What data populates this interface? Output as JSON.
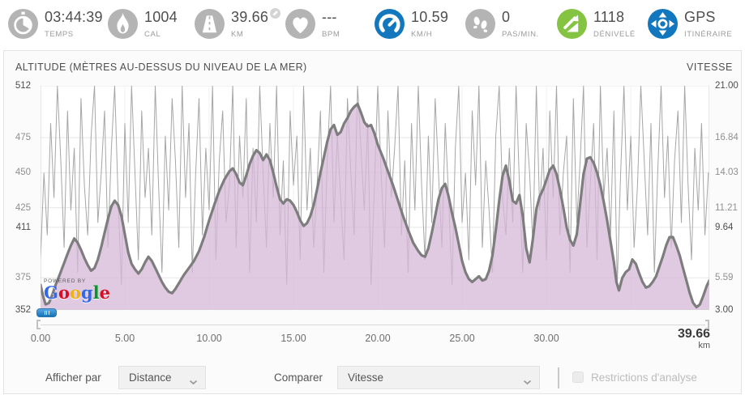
{
  "header": {
    "stats": [
      {
        "value": "03:44:39",
        "label": "TEMPS",
        "icon": "stopwatch-icon"
      },
      {
        "value": "1004",
        "label": "CAL",
        "icon": "flame-icon"
      },
      {
        "value": "39.66",
        "label": "KM",
        "icon": "distance-icon"
      },
      {
        "value": "---",
        "label": "BPM",
        "icon": "heart-icon"
      },
      {
        "value": "10.59",
        "label": "KM/H",
        "icon": "speedometer-icon"
      },
      {
        "value": "0",
        "label": "PAS/MIN.",
        "icon": "footsteps-icon"
      },
      {
        "value": "1118",
        "label": "DÉNIVELÉ",
        "icon": "ascent-icon"
      },
      {
        "value": "GPS",
        "label": "ITINÉRAIRE",
        "icon": "gps-route-icon"
      }
    ]
  },
  "chart": {
    "title_left": "ALTITUDE (MÈTRES AU-DESSUS DU NIVEAU DE LA MER)",
    "title_right": "VITESSE",
    "watermark_small": "POWERED BY",
    "watermark_letters": [
      "G",
      "o",
      "o",
      "g",
      "l",
      "e"
    ],
    "x_end_label": "39.66",
    "x_end_unit": "km"
  },
  "controls": {
    "show_by_label": "Afficher par",
    "show_by_value": "Distance",
    "compare_label": "Comparer",
    "compare_value": "Vitesse",
    "restrictions_label": "Restrictions d'analyse"
  },
  "colors": {
    "icon_gray": "#b4b4b4",
    "accent_blue": "#1377bd",
    "accent_green": "#85c342",
    "area_fill": "#d5b8d8",
    "area_stroke": "#7d7d7d",
    "speed_line": "#a6a6a6"
  },
  "chart_data": {
    "type": "area",
    "title": "ALTITUDE (MÈTRES AU-DESSUS DU NIVEAU DE LA MER)",
    "legend_position": "none",
    "grid": true,
    "left_axis": {
      "name": "altitude_m",
      "min": 352,
      "max": 512,
      "ticks": [
        {
          "label": "512",
          "v": 512,
          "strong": true
        },
        {
          "label": "475",
          "v": 475,
          "strong": false
        },
        {
          "label": "450",
          "v": 450,
          "strong": false
        },
        {
          "label": "425",
          "v": 425,
          "strong": false
        },
        {
          "label": "411",
          "v": 411,
          "strong": true
        },
        {
          "label": "375",
          "v": 375,
          "strong": false
        },
        {
          "label": "352",
          "v": 352,
          "strong": true
        }
      ]
    },
    "right_axis": {
      "name": "vitesse_kmh",
      "min": 3,
      "max": 21,
      "ticks": [
        {
          "label": "21.00",
          "v": 21.0,
          "strong": true
        },
        {
          "label": "16.84",
          "v": 16.84,
          "strong": false
        },
        {
          "label": "14.03",
          "v": 14.03,
          "strong": false
        },
        {
          "label": "11.21",
          "v": 11.21,
          "strong": false
        },
        {
          "label": "9.64",
          "v": 9.64,
          "strong": true
        },
        {
          "label": "5.59",
          "v": 5.59,
          "strong": false
        },
        {
          "label": "3.00",
          "v": 3.0,
          "strong": true
        }
      ]
    },
    "x_axis": {
      "name": "distance_km",
      "min": 0,
      "max": 39.66,
      "ticks": [
        {
          "label": "0.00",
          "km": 0
        },
        {
          "label": "5.00",
          "km": 5
        },
        {
          "label": "10.00",
          "km": 10
        },
        {
          "label": "15.00",
          "km": 15
        },
        {
          "label": "20.00",
          "km": 20
        },
        {
          "label": "25.00",
          "km": 25
        },
        {
          "label": "30.00",
          "km": 30
        }
      ],
      "grid_km": [
        5,
        10,
        15,
        20,
        25,
        30,
        35
      ]
    },
    "series": [
      {
        "name": "altitude",
        "axis": "left",
        "style": "area",
        "fill": "#d5b8d8",
        "stroke": "#7d7d7d",
        "points": [
          [
            0,
            370
          ],
          [
            0.15,
            362
          ],
          [
            0.3,
            356
          ],
          [
            0.5,
            357
          ],
          [
            0.7,
            363
          ],
          [
            0.9,
            370
          ],
          [
            1.1,
            376
          ],
          [
            1.35,
            384
          ],
          [
            1.6,
            392
          ],
          [
            1.8,
            398
          ],
          [
            2,
            403
          ],
          [
            2.2,
            400
          ],
          [
            2.4,
            395
          ],
          [
            2.6,
            389
          ],
          [
            2.8,
            384
          ],
          [
            3,
            380
          ],
          [
            3.2,
            382
          ],
          [
            3.4,
            388
          ],
          [
            3.6,
            397
          ],
          [
            3.8,
            407
          ],
          [
            4,
            417
          ],
          [
            4.2,
            426
          ],
          [
            4.4,
            430
          ],
          [
            4.6,
            427
          ],
          [
            4.8,
            419
          ],
          [
            5,
            406
          ],
          [
            5.2,
            393
          ],
          [
            5.4,
            385
          ],
          [
            5.6,
            381
          ],
          [
            5.8,
            378
          ],
          [
            6,
            381
          ],
          [
            6.2,
            386
          ],
          [
            6.4,
            390
          ],
          [
            6.6,
            387
          ],
          [
            6.8,
            382
          ],
          [
            7,
            377
          ],
          [
            7.2,
            372
          ],
          [
            7.4,
            368
          ],
          [
            7.6,
            365
          ],
          [
            7.8,
            364
          ],
          [
            8,
            367
          ],
          [
            8.2,
            371
          ],
          [
            8.5,
            377
          ],
          [
            8.8,
            382
          ],
          [
            9.1,
            387
          ],
          [
            9.4,
            394
          ],
          [
            9.7,
            404
          ],
          [
            10,
            416
          ],
          [
            10.3,
            427
          ],
          [
            10.6,
            437
          ],
          [
            10.9,
            445
          ],
          [
            11.2,
            451
          ],
          [
            11.4,
            453
          ],
          [
            11.6,
            449
          ],
          [
            11.8,
            443
          ],
          [
            12,
            441
          ],
          [
            12.2,
            448
          ],
          [
            12.4,
            456
          ],
          [
            12.6,
            462
          ],
          [
            12.8,
            466
          ],
          [
            13,
            464
          ],
          [
            13.2,
            459
          ],
          [
            13.4,
            463
          ],
          [
            13.6,
            459
          ],
          [
            13.8,
            450
          ],
          [
            14,
            440
          ],
          [
            14.2,
            431
          ],
          [
            14.4,
            428
          ],
          [
            14.6,
            431
          ],
          [
            14.8,
            430
          ],
          [
            15,
            427
          ],
          [
            15.2,
            422
          ],
          [
            15.4,
            416
          ],
          [
            15.6,
            412
          ],
          [
            15.8,
            414
          ],
          [
            16,
            419
          ],
          [
            16.2,
            427
          ],
          [
            16.4,
            438
          ],
          [
            16.6,
            450
          ],
          [
            16.8,
            461
          ],
          [
            17,
            472
          ],
          [
            17.2,
            481
          ],
          [
            17.4,
            484
          ],
          [
            17.6,
            477
          ],
          [
            17.8,
            479
          ],
          [
            18,
            485
          ],
          [
            18.2,
            489
          ],
          [
            18.4,
            494
          ],
          [
            18.6,
            497
          ],
          [
            18.8,
            499
          ],
          [
            19,
            493
          ],
          [
            19.2,
            486
          ],
          [
            19.4,
            483
          ],
          [
            19.6,
            484
          ],
          [
            19.8,
            478
          ],
          [
            20,
            470
          ],
          [
            20.3,
            461
          ],
          [
            20.6,
            451
          ],
          [
            20.9,
            441
          ],
          [
            21.2,
            430
          ],
          [
            21.5,
            419
          ],
          [
            21.8,
            409
          ],
          [
            22.1,
            400
          ],
          [
            22.4,
            394
          ],
          [
            22.6,
            391
          ],
          [
            22.8,
            390
          ],
          [
            23,
            396
          ],
          [
            23.2,
            407
          ],
          [
            23.4,
            419
          ],
          [
            23.6,
            431
          ],
          [
            23.8,
            439
          ],
          [
            24,
            442
          ],
          [
            24.2,
            433
          ],
          [
            24.4,
            421
          ],
          [
            24.6,
            411
          ],
          [
            24.8,
            399
          ],
          [
            25,
            387
          ],
          [
            25.2,
            379
          ],
          [
            25.4,
            374
          ],
          [
            25.6,
            372
          ],
          [
            25.8,
            374
          ],
          [
            26,
            376
          ],
          [
            26.2,
            373
          ],
          [
            26.4,
            374
          ],
          [
            26.6,
            380
          ],
          [
            26.8,
            391
          ],
          [
            27,
            409
          ],
          [
            27.2,
            430
          ],
          [
            27.4,
            448
          ],
          [
            27.6,
            455
          ],
          [
            27.8,
            444
          ],
          [
            28,
            430
          ],
          [
            28.2,
            428
          ],
          [
            28.4,
            434
          ],
          [
            28.6,
            419
          ],
          [
            28.8,
            396
          ],
          [
            29,
            386
          ],
          [
            29.2,
            403
          ],
          [
            29.4,
            424
          ],
          [
            29.6,
            433
          ],
          [
            29.8,
            438
          ],
          [
            30,
            445
          ],
          [
            30.2,
            452
          ],
          [
            30.4,
            455
          ],
          [
            30.6,
            449
          ],
          [
            30.8,
            438
          ],
          [
            31,
            425
          ],
          [
            31.2,
            411
          ],
          [
            31.4,
            402
          ],
          [
            31.6,
            398
          ],
          [
            31.8,
            406
          ],
          [
            32,
            428
          ],
          [
            32.2,
            449
          ],
          [
            32.4,
            460
          ],
          [
            32.6,
            461
          ],
          [
            32.8,
            457
          ],
          [
            33,
            450
          ],
          [
            33.2,
            441
          ],
          [
            33.4,
            429
          ],
          [
            33.6,
            416
          ],
          [
            33.8,
            401
          ],
          [
            34,
            386
          ],
          [
            34.15,
            372
          ],
          [
            34.3,
            366
          ],
          [
            34.5,
            375
          ],
          [
            34.7,
            379
          ],
          [
            34.9,
            381
          ],
          [
            35.1,
            388
          ],
          [
            35.3,
            385
          ],
          [
            35.5,
            378
          ],
          [
            35.7,
            372
          ],
          [
            35.9,
            368
          ],
          [
            36.1,
            369
          ],
          [
            36.3,
            372
          ],
          [
            36.5,
            376
          ],
          [
            36.7,
            383
          ],
          [
            36.9,
            390
          ],
          [
            37.1,
            398
          ],
          [
            37.3,
            404
          ],
          [
            37.5,
            404
          ],
          [
            37.7,
            398
          ],
          [
            37.9,
            391
          ],
          [
            38.1,
            382
          ],
          [
            38.3,
            373
          ],
          [
            38.5,
            364
          ],
          [
            38.7,
            357
          ],
          [
            38.9,
            354
          ],
          [
            39.1,
            356
          ],
          [
            39.3,
            362
          ],
          [
            39.5,
            369
          ],
          [
            39.66,
            373
          ]
        ]
      },
      {
        "name": "vitesse",
        "axis": "right",
        "style": "line",
        "stroke": "#a6a6a6",
        "x_step": 0.2,
        "values": [
          7,
          14,
          9,
          18,
          12,
          21,
          15,
          8,
          19,
          11,
          16,
          6,
          20,
          13,
          9,
          17,
          21,
          10,
          14,
          19,
          8,
          16,
          21,
          12,
          5,
          18,
          10,
          21,
          14,
          7,
          19,
          12,
          16,
          9,
          21,
          13,
          6,
          17,
          11,
          20,
          15,
          8,
          21,
          12,
          18,
          6,
          14,
          20,
          9,
          16,
          11,
          21,
          7,
          15,
          19,
          10,
          13,
          21,
          8,
          17,
          12,
          20,
          6,
          16,
          10,
          21,
          14,
          8,
          18,
          12,
          21,
          9,
          15,
          5,
          19,
          13,
          17,
          7,
          21,
          11,
          16,
          8,
          13,
          19,
          6,
          15,
          21,
          10,
          17,
          12,
          7,
          20,
          14,
          9,
          21,
          16,
          11,
          18,
          5,
          13,
          21,
          14,
          8,
          19,
          12,
          16,
          21,
          9,
          15,
          6,
          18,
          11,
          21,
          13,
          7,
          17,
          10,
          20,
          14,
          8,
          18,
          12,
          5,
          16,
          21,
          10,
          14,
          7,
          19,
          13,
          21,
          8,
          15,
          11,
          6,
          17,
          21,
          12,
          9,
          16,
          10,
          21,
          13,
          6,
          18,
          14,
          8,
          21,
          11,
          16,
          7,
          19,
          12,
          21,
          9,
          14,
          17,
          6,
          20,
          10,
          15,
          21,
          8,
          13,
          18,
          7,
          21,
          12,
          16,
          9,
          19,
          5,
          14,
          21,
          11,
          17,
          8,
          13,
          21,
          15,
          9,
          18,
          6,
          14,
          21,
          12,
          17,
          8,
          15,
          19,
          10,
          21,
          13,
          7,
          16,
          11,
          18,
          9,
          14,
          14
        ]
      }
    ]
  }
}
